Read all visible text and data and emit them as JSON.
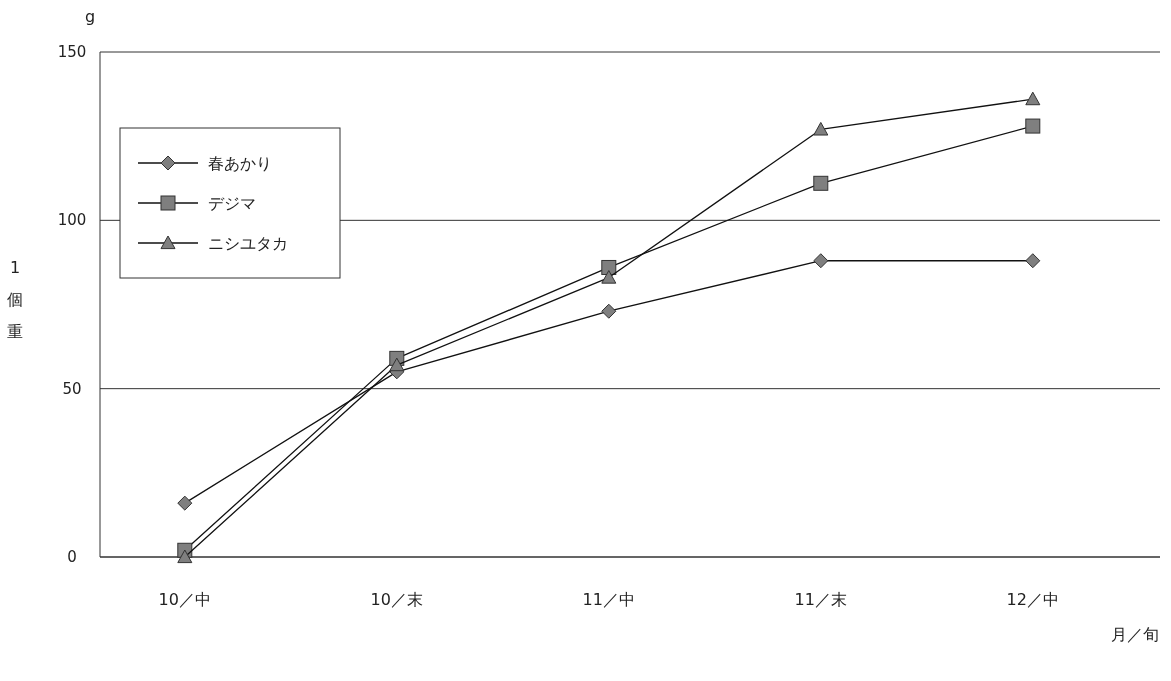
{
  "chart_data": {
    "type": "line",
    "xlabel": "月／旬",
    "ylabel": "1個重",
    "annotations": [
      "g"
    ],
    "categories": [
      "10／中",
      "10／末",
      "11／中",
      "11／末",
      "12／中"
    ],
    "series": [
      {
        "name": "春あかり",
        "color": "#7f7f7f",
        "marker": "diamond",
        "values": [
          16,
          55,
          73,
          88,
          88
        ]
      },
      {
        "name": "デジマ",
        "color": "#7f7f7f",
        "marker": "square",
        "values": [
          2,
          59,
          86,
          111,
          128
        ]
      },
      {
        "name": "ニシユタカ",
        "color": "#7f7f7f",
        "marker": "triangle",
        "values": [
          0,
          57,
          83,
          127,
          136
        ]
      }
    ],
    "ylim": [
      0,
      150
    ],
    "yticks": [
      0,
      50,
      100,
      150
    ],
    "grid": "y",
    "legend": "top left"
  }
}
